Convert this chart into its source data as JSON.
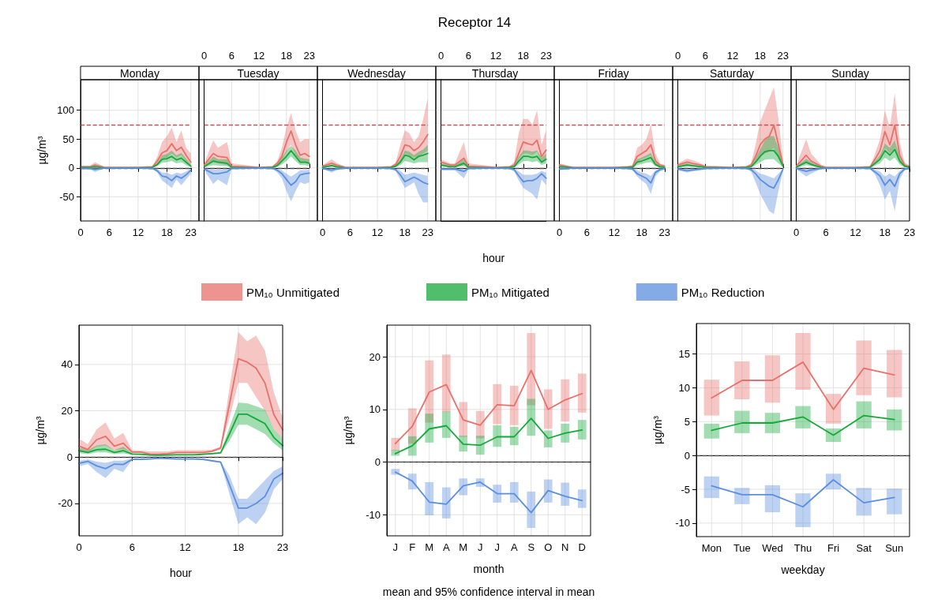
{
  "chart_data": [
    {
      "type": "line",
      "title": "Monday",
      "ylabel": "µg/m³",
      "marker": "none",
      "grid": true,
      "x": [
        0,
        2,
        3,
        5,
        6,
        12,
        15,
        16,
        17,
        18,
        19,
        20,
        21,
        22,
        23
      ],
      "xlim": [
        0,
        23
      ],
      "xticks": [
        0,
        6,
        12,
        18,
        23
      ],
      "ylim": [
        -92,
        153
      ],
      "yticks": [
        -50,
        0,
        50,
        100
      ],
      "ref_lines": [
        {
          "axis": "y",
          "value": 75,
          "color": "#c8505a",
          "line_style": "dashed"
        },
        {
          "axis": "y",
          "value": 0,
          "color": "#555555",
          "line_style": "dashed"
        }
      ],
      "series": [
        {
          "color": "#e8706b",
          "values": [
            2,
            2,
            5,
            1,
            1,
            1,
            2,
            12,
            26,
            30,
            42,
            30,
            36,
            22,
            10
          ],
          "upper": [
            4,
            4,
            10,
            2,
            2,
            2,
            3,
            20,
            45,
            55,
            70,
            45,
            65,
            35,
            25
          ],
          "lower": [
            1,
            1,
            2,
            0,
            0,
            0,
            1,
            6,
            15,
            18,
            25,
            18,
            22,
            12,
            5
          ]
        },
        {
          "color": "#17a83b",
          "values": [
            1,
            1,
            2,
            0,
            0,
            0,
            1,
            6,
            15,
            16,
            20,
            14,
            17,
            10,
            3
          ],
          "upper": [
            2,
            2,
            4,
            1,
            1,
            1,
            2,
            9,
            22,
            24,
            30,
            22,
            26,
            16,
            6
          ],
          "lower": [
            0,
            0,
            1,
            0,
            0,
            0,
            0,
            3,
            9,
            10,
            12,
            8,
            10,
            5,
            1
          ]
        },
        {
          "color": "#5b8fde",
          "values": [
            -1,
            -1,
            -3,
            0,
            0,
            0,
            -1,
            -5,
            -14,
            -16,
            -22,
            -14,
            -18,
            -12,
            -4
          ],
          "upper": [
            0,
            0,
            -1,
            0,
            0,
            0,
            0,
            -2,
            -8,
            -8,
            -12,
            -8,
            -10,
            -6,
            -1
          ],
          "lower": [
            -2,
            -2,
            -7,
            -1,
            -1,
            -1,
            -2,
            -8,
            -22,
            -28,
            -35,
            -20,
            -30,
            -20,
            -10
          ]
        }
      ]
    },
    {
      "type": "line",
      "title": "Tuesday",
      "marker": "none",
      "grid": true,
      "tick_labels": "x",
      "x": [
        0,
        2,
        3,
        5,
        6,
        12,
        15,
        16,
        17,
        18,
        19,
        20,
        21,
        22,
        23
      ],
      "xlim": [
        0,
        23
      ],
      "xticks": [
        0,
        6,
        12,
        18,
        23
      ],
      "ylim": [
        -92,
        153
      ],
      "yticks": [
        {
          "value": -50,
          "label": null
        },
        {
          "value": 0,
          "label": null
        },
        {
          "value": 50,
          "label": null
        },
        {
          "value": 100,
          "label": null
        }
      ],
      "ref_lines": [
        {
          "axis": "y",
          "value": 75,
          "color": "#c8505a",
          "line_style": "dashed"
        },
        {
          "axis": "y",
          "value": 0,
          "color": "#555555",
          "line_style": "dashed"
        }
      ],
      "series": [
        {
          "color": "#e8706b",
          "values": [
            5,
            25,
            20,
            18,
            3,
            1,
            2,
            8,
            20,
            45,
            64,
            40,
            22,
            25,
            20
          ],
          "upper": [
            8,
            48,
            35,
            45,
            8,
            2,
            3,
            12,
            35,
            70,
            95,
            65,
            45,
            50,
            50
          ],
          "lower": [
            2,
            10,
            8,
            5,
            1,
            0,
            1,
            4,
            12,
            28,
            40,
            22,
            12,
            12,
            8
          ]
        },
        {
          "color": "#17a83b",
          "values": [
            2,
            12,
            10,
            8,
            1,
            0,
            1,
            4,
            12,
            20,
            30,
            20,
            10,
            10,
            8
          ],
          "upper": [
            4,
            20,
            15,
            15,
            2,
            1,
            2,
            6,
            18,
            30,
            38,
            30,
            18,
            16,
            15
          ],
          "lower": [
            1,
            5,
            4,
            3,
            0,
            0,
            0,
            2,
            6,
            12,
            20,
            12,
            5,
            5,
            3
          ]
        },
        {
          "color": "#5b8fde",
          "values": [
            -2,
            -10,
            -10,
            -7,
            -1,
            0,
            -1,
            -4,
            -10,
            -20,
            -30,
            -24,
            -12,
            -10,
            -9
          ],
          "upper": [
            -1,
            -3,
            -3,
            -2,
            0,
            0,
            0,
            -2,
            -4,
            -10,
            -15,
            -10,
            -4,
            -4,
            -3
          ],
          "lower": [
            -4,
            -28,
            -20,
            -30,
            -2,
            -1,
            -2,
            -8,
            -18,
            -40,
            -58,
            -40,
            -25,
            -28,
            -25
          ]
        }
      ]
    },
    {
      "type": "line",
      "title": "Wednesday",
      "marker": "none",
      "grid": true,
      "tick_labels": "x",
      "x": [
        0,
        2,
        3,
        5,
        6,
        12,
        15,
        16,
        17,
        18,
        19,
        20,
        21,
        22,
        23
      ],
      "xlim": [
        0,
        23
      ],
      "xticks": [
        0,
        6,
        12,
        18,
        23
      ],
      "ylim": [
        -92,
        153
      ],
      "yticks": [
        {
          "value": -50,
          "label": null
        },
        {
          "value": 0,
          "label": null
        },
        {
          "value": 50,
          "label": null
        },
        {
          "value": 100,
          "label": null
        }
      ],
      "ref_lines": [
        {
          "axis": "y",
          "value": 75,
          "color": "#c8505a",
          "line_style": "dashed"
        },
        {
          "axis": "y",
          "value": 0,
          "color": "#555555",
          "line_style": "dashed"
        }
      ],
      "series": [
        {
          "color": "#e8706b",
          "values": [
            3,
            8,
            5,
            1,
            1,
            1,
            2,
            6,
            20,
            40,
            38,
            30,
            35,
            45,
            58
          ],
          "upper": [
            5,
            15,
            9,
            2,
            2,
            2,
            3,
            10,
            40,
            65,
            60,
            45,
            55,
            85,
            120
          ],
          "lower": [
            1,
            3,
            2,
            0,
            0,
            0,
            1,
            3,
            10,
            25,
            22,
            18,
            20,
            25,
            30
          ]
        },
        {
          "color": "#17a83b",
          "values": [
            1,
            4,
            2,
            0,
            0,
            0,
            1,
            3,
            10,
            22,
            20,
            14,
            20,
            22,
            25
          ],
          "upper": [
            2,
            6,
            4,
            1,
            1,
            1,
            2,
            5,
            15,
            30,
            28,
            22,
            28,
            32,
            40
          ],
          "lower": [
            0,
            2,
            1,
            0,
            0,
            0,
            0,
            1,
            5,
            12,
            10,
            8,
            10,
            10,
            10
          ]
        },
        {
          "color": "#5b8fde",
          "values": [
            -1,
            -4,
            -2,
            0,
            0,
            0,
            -1,
            -3,
            -12,
            -24,
            -20,
            -16,
            -20,
            -25,
            -28
          ],
          "upper": [
            0,
            -1,
            0,
            0,
            0,
            0,
            0,
            -1,
            -5,
            -12,
            -10,
            -8,
            -10,
            -12,
            -14
          ],
          "lower": [
            -2,
            -8,
            -4,
            -1,
            -1,
            -1,
            -2,
            -6,
            -20,
            -35,
            -30,
            -25,
            -45,
            -60,
            -60
          ]
        }
      ]
    },
    {
      "type": "line",
      "title": "Thursday",
      "xlabel": "hour",
      "marker": "none",
      "grid": true,
      "tick_labels": "x",
      "legend": "bottom",
      "annotations": [
        "Receptor 14"
      ],
      "x": [
        0,
        2,
        3,
        5,
        6,
        12,
        15,
        16,
        17,
        18,
        19,
        20,
        21,
        22,
        23
      ],
      "xlim": [
        0,
        23
      ],
      "xticks": [
        0,
        6,
        12,
        18,
        23
      ],
      "ylim": [
        -92,
        153
      ],
      "yticks": [
        {
          "value": -50,
          "label": null
        },
        {
          "value": 0,
          "label": null
        },
        {
          "value": 50,
          "label": null
        },
        {
          "value": 100,
          "label": null
        }
      ],
      "ref_lines": [
        {
          "axis": "y",
          "value": 75,
          "color": "#c8505a",
          "line_style": "dashed"
        },
        {
          "axis": "y",
          "value": 0,
          "color": "#555555",
          "line_style": "dashed"
        }
      ],
      "series": [
        {
          "name": "PM₁₀ Unmitigated",
          "color": "#e8706b",
          "values": [
            10,
            5,
            5,
            17,
            3,
            1,
            2,
            5,
            25,
            45,
            42,
            40,
            48,
            20,
            31
          ],
          "upper": [
            15,
            8,
            8,
            45,
            8,
            2,
            3,
            10,
            60,
            85,
            85,
            75,
            100,
            40,
            65
          ],
          "lower": [
            5,
            2,
            2,
            5,
            1,
            0,
            1,
            2,
            15,
            25,
            25,
            22,
            28,
            10,
            15
          ]
        },
        {
          "name": "PM₁₀ Mitigated",
          "color": "#17a83b",
          "values": [
            5,
            2,
            2,
            8,
            1,
            0,
            1,
            2,
            12,
            20,
            20,
            18,
            20,
            10,
            15
          ],
          "upper": [
            8,
            4,
            4,
            15,
            2,
            1,
            2,
            4,
            20,
            30,
            30,
            28,
            30,
            18,
            25
          ],
          "lower": [
            2,
            1,
            1,
            3,
            0,
            0,
            0,
            1,
            6,
            12,
            12,
            10,
            12,
            5,
            8
          ]
        },
        {
          "name": "PM₁₀ Reduction",
          "color": "#5b8fde",
          "values": [
            -2,
            -2,
            -2,
            -6,
            -1,
            0,
            -1,
            -3,
            -14,
            -24,
            -22,
            -22,
            -18,
            -10,
            -18
          ],
          "upper": [
            -1,
            -1,
            -1,
            -2,
            0,
            0,
            0,
            -1,
            -6,
            -12,
            -12,
            -12,
            -10,
            -5,
            -8
          ],
          "lower": [
            -4,
            -4,
            -4,
            -18,
            -2,
            -1,
            -2,
            -6,
            -22,
            -35,
            -40,
            -45,
            -55,
            -20,
            -30
          ]
        }
      ]
    },
    {
      "type": "line",
      "title": "Friday",
      "marker": "none",
      "grid": true,
      "tick_labels": "x",
      "x": [
        0,
        2,
        3,
        5,
        6,
        12,
        15,
        16,
        17,
        18,
        19,
        20,
        21,
        22,
        23
      ],
      "xlim": [
        0,
        23
      ],
      "xticks": [
        0,
        6,
        12,
        18,
        23
      ],
      "ylim": [
        -92,
        153
      ],
      "yticks": [
        {
          "value": -50,
          "label": null
        },
        {
          "value": 0,
          "label": null
        },
        {
          "value": 50,
          "label": null
        },
        {
          "value": 100,
          "label": null
        }
      ],
      "ref_lines": [
        {
          "axis": "y",
          "value": 75,
          "color": "#c8505a",
          "line_style": "dashed"
        },
        {
          "axis": "y",
          "value": 0,
          "color": "#555555",
          "line_style": "dashed"
        }
      ],
      "series": [
        {
          "color": "#e8706b",
          "values": [
            5,
            2,
            1,
            1,
            1,
            1,
            2,
            3,
            20,
            25,
            30,
            40,
            12,
            5,
            3
          ],
          "upper": [
            8,
            4,
            2,
            2,
            2,
            2,
            3,
            5,
            35,
            40,
            50,
            75,
            25,
            8,
            5
          ],
          "lower": [
            2,
            1,
            0,
            0,
            0,
            0,
            1,
            1,
            10,
            15,
            18,
            22,
            6,
            2,
            1
          ]
        },
        {
          "color": "#17a83b",
          "values": [
            2,
            1,
            0,
            0,
            0,
            0,
            1,
            1,
            10,
            12,
            15,
            18,
            6,
            2,
            1
          ],
          "upper": [
            4,
            2,
            1,
            1,
            1,
            1,
            2,
            2,
            15,
            18,
            22,
            26,
            10,
            4,
            2
          ],
          "lower": [
            1,
            0,
            0,
            0,
            0,
            0,
            0,
            0,
            5,
            7,
            9,
            10,
            3,
            1,
            0
          ]
        },
        {
          "color": "#5b8fde",
          "values": [
            -2,
            -1,
            0,
            0,
            0,
            0,
            -1,
            -2,
            -10,
            -14,
            -18,
            -26,
            -8,
            -3,
            -1
          ],
          "upper": [
            -1,
            0,
            0,
            0,
            0,
            0,
            0,
            -1,
            -4,
            -8,
            -10,
            -14,
            -4,
            -1,
            0
          ],
          "lower": [
            -4,
            -2,
            -1,
            -1,
            -1,
            -1,
            -2,
            -4,
            -15,
            -22,
            -28,
            -45,
            -15,
            -6,
            -3
          ]
        }
      ]
    },
    {
      "type": "line",
      "title": "Saturday",
      "marker": "none",
      "grid": true,
      "tick_labels": "x",
      "x": [
        0,
        2,
        3,
        5,
        6,
        12,
        15,
        16,
        17,
        18,
        19,
        20,
        21,
        22,
        23
      ],
      "xlim": [
        0,
        23
      ],
      "xticks": [
        0,
        6,
        12,
        18,
        23
      ],
      "ylim": [
        -92,
        153
      ],
      "yticks": [
        {
          "value": -50,
          "label": null
        },
        {
          "value": 0,
          "label": null
        },
        {
          "value": 50,
          "label": null
        },
        {
          "value": 100,
          "label": null
        }
      ],
      "ref_lines": [
        {
          "axis": "y",
          "value": 75,
          "color": "#c8505a",
          "line_style": "dashed"
        },
        {
          "axis": "y",
          "value": 0,
          "color": "#555555",
          "line_style": "dashed"
        }
      ],
      "series": [
        {
          "color": "#e8706b",
          "values": [
            5,
            10,
            8,
            5,
            2,
            1,
            2,
            5,
            20,
            40,
            50,
            55,
            74,
            40,
            5
          ],
          "upper": [
            8,
            16,
            14,
            8,
            4,
            2,
            3,
            8,
            40,
            80,
            100,
            120,
            140,
            85,
            15
          ],
          "lower": [
            2,
            5,
            3,
            2,
            1,
            0,
            1,
            2,
            10,
            20,
            25,
            28,
            35,
            15,
            2
          ]
        },
        {
          "color": "#17a83b",
          "values": [
            2,
            5,
            4,
            2,
            1,
            0,
            1,
            2,
            10,
            20,
            28,
            30,
            30,
            20,
            3
          ],
          "upper": [
            4,
            8,
            6,
            4,
            2,
            1,
            2,
            4,
            18,
            32,
            48,
            55,
            55,
            35,
            6
          ],
          "lower": [
            1,
            2,
            2,
            1,
            0,
            0,
            0,
            1,
            5,
            10,
            14,
            15,
            15,
            8,
            1
          ]
        },
        {
          "color": "#5b8fde",
          "values": [
            -2,
            -5,
            -4,
            -2,
            -1,
            0,
            -1,
            -3,
            -10,
            -20,
            -26,
            -32,
            -35,
            -20,
            -2
          ],
          "upper": [
            -1,
            -2,
            -1,
            -1,
            0,
            0,
            0,
            -1,
            -4,
            -10,
            -12,
            -15,
            -18,
            -10,
            -1
          ],
          "lower": [
            -4,
            -8,
            -6,
            -4,
            -2,
            -1,
            -2,
            -6,
            -25,
            -45,
            -60,
            -75,
            -80,
            -40,
            -5
          ]
        }
      ]
    },
    {
      "type": "line",
      "title": "Sunday",
      "marker": "none",
      "grid": true,
      "tick_labels": "x",
      "x": [
        0,
        2,
        3,
        5,
        6,
        12,
        15,
        16,
        17,
        18,
        19,
        20,
        21,
        22,
        23
      ],
      "xlim": [
        0,
        23
      ],
      "xticks": [
        0,
        6,
        12,
        18,
        23
      ],
      "ylim": [
        -92,
        153
      ],
      "yticks": [
        {
          "value": -50,
          "label": null
        },
        {
          "value": 0,
          "label": null
        },
        {
          "value": 50,
          "label": null
        },
        {
          "value": 100,
          "label": null
        }
      ],
      "ref_lines": [
        {
          "axis": "y",
          "value": 75,
          "color": "#c8505a",
          "line_style": "dashed"
        },
        {
          "axis": "y",
          "value": 0,
          "color": "#555555",
          "line_style": "dashed"
        }
      ],
      "series": [
        {
          "color": "#e8706b",
          "values": [
            3,
            22,
            12,
            3,
            1,
            1,
            2,
            15,
            30,
            63,
            40,
            74,
            22,
            5,
            2
          ],
          "upper": [
            5,
            50,
            25,
            6,
            2,
            2,
            3,
            25,
            50,
            100,
            70,
            130,
            45,
            10,
            4
          ],
          "lower": [
            1,
            8,
            5,
            1,
            0,
            0,
            1,
            8,
            15,
            35,
            25,
            35,
            10,
            2,
            1
          ]
        },
        {
          "color": "#17a83b",
          "values": [
            1,
            10,
            6,
            1,
            0,
            0,
            1,
            8,
            15,
            30,
            22,
            32,
            12,
            3,
            1
          ],
          "upper": [
            2,
            16,
            10,
            2,
            1,
            1,
            2,
            12,
            22,
            42,
            35,
            48,
            20,
            5,
            2
          ],
          "lower": [
            0,
            5,
            3,
            0,
            0,
            0,
            0,
            4,
            8,
            18,
            12,
            18,
            6,
            1,
            0
          ]
        },
        {
          "color": "#5b8fde",
          "values": [
            -1,
            -6,
            -4,
            -1,
            0,
            0,
            -1,
            -7,
            -14,
            -30,
            -20,
            -32,
            -10,
            -2,
            -1
          ],
          "upper": [
            0,
            -2,
            -1,
            0,
            0,
            0,
            0,
            -3,
            -6,
            -15,
            -10,
            -15,
            -5,
            -1,
            0
          ],
          "lower": [
            -2,
            -15,
            -10,
            -2,
            -1,
            -1,
            -2,
            -12,
            -30,
            -55,
            -40,
            -75,
            -20,
            -4,
            -2
          ]
        }
      ]
    },
    {
      "type": "line",
      "xlabel": "hour",
      "ylabel": "µg/m³",
      "marker": "none",
      "grid": true,
      "x": [
        0,
        1,
        2,
        3,
        4,
        5,
        6,
        7,
        8,
        9,
        10,
        11,
        12,
        13,
        14,
        15,
        16,
        17,
        18,
        19,
        20,
        21,
        22,
        23
      ],
      "xlim": [
        0,
        23
      ],
      "xticks": [
        0,
        6,
        12,
        18,
        23
      ],
      "ylim": [
        -34,
        57
      ],
      "yticks": [
        -20,
        0,
        20,
        40
      ],
      "ref_lines": [
        {
          "axis": "y",
          "value": 0,
          "color": "#555555",
          "line_style": "dashed"
        }
      ],
      "series": [
        {
          "color": "#e8706b",
          "values": [
            4.7,
            3.3,
            7.5,
            9,
            4.7,
            6,
            2.2,
            2.2,
            1.3,
            1.2,
            1.5,
            2,
            2,
            2,
            2,
            2.5,
            3.9,
            23,
            42.5,
            41,
            38.4,
            32,
            18.4,
            11.8
          ],
          "upper": [
            8,
            5.5,
            12,
            15,
            8,
            10.5,
            3,
            2.8,
            2.5,
            2.5,
            2.5,
            3,
            3,
            3,
            3,
            3.2,
            4.5,
            30,
            54,
            50,
            52.5,
            46,
            28,
            17
          ],
          "lower": [
            3,
            2,
            4.5,
            5,
            3,
            3.5,
            1.8,
            1.8,
            1,
            0.9,
            1,
            1.5,
            1.5,
            1.5,
            1.5,
            2,
            3.5,
            17,
            32,
            32,
            26,
            20,
            12,
            8
          ]
        },
        {
          "color": "#17a83b",
          "values": [
            2.8,
            2,
            3.2,
            3.4,
            2,
            2.8,
            1.3,
            1.2,
            0.9,
            0.8,
            0.9,
            1,
            1,
            1,
            1.2,
            1.5,
            1.8,
            10,
            18.5,
            18.5,
            16.5,
            14.5,
            8.5,
            5
          ],
          "upper": [
            4,
            3,
            5,
            5.5,
            3,
            4.5,
            1.6,
            1.5,
            1.2,
            1.1,
            1.2,
            1.3,
            1.3,
            1.3,
            1.5,
            1.8,
            2.1,
            13,
            23.5,
            23.3,
            22,
            20.5,
            12,
            8
          ],
          "lower": [
            1.8,
            1.3,
            2,
            2,
            1.3,
            1.6,
            1,
            0.9,
            0.7,
            0.6,
            0.7,
            0.8,
            0.8,
            0.8,
            1,
            1.2,
            1.6,
            7,
            14,
            14,
            12,
            10,
            6,
            3
          ]
        },
        {
          "color": "#5b8fde",
          "values": [
            -2.7,
            -1.8,
            -3.8,
            -5,
            -3,
            -3.2,
            -1,
            -1,
            -0.8,
            -0.5,
            -0.6,
            -0.8,
            -0.8,
            -0.8,
            -1,
            -1.6,
            -2.2,
            -12,
            -22,
            -22,
            -20,
            -17,
            -9.5,
            -7
          ],
          "upper": [
            -1.5,
            -1,
            -2,
            -2.5,
            -1.5,
            -1.5,
            -0.6,
            -0.6,
            -0.5,
            -0.3,
            -0.4,
            -0.5,
            -0.5,
            -0.5,
            -0.7,
            -1.2,
            -1.8,
            -8,
            -18,
            -18,
            -14,
            -10,
            -6,
            -4
          ],
          "lower": [
            -4,
            -3,
            -6.5,
            -9,
            -5,
            -6.5,
            -1.2,
            -1.2,
            -1,
            -0.7,
            -0.8,
            -1,
            -1,
            -1,
            -1.3,
            -2,
            -2.5,
            -16,
            -29,
            -26,
            -29,
            -24,
            -14,
            -9.5
          ]
        }
      ]
    },
    {
      "type": "line",
      "xlabel": "month",
      "ylabel": "µg/m³",
      "marker": "none",
      "grid": true,
      "categories": [
        "J",
        "F",
        "M",
        "A",
        "M",
        "J",
        "J",
        "A",
        "S",
        "O",
        "N",
        "D"
      ],
      "ylim": [
        -14,
        26
      ],
      "yticks": [
        -10,
        0,
        10,
        20
      ],
      "annotations": [
        "mean and 95% confidence interval in mean"
      ],
      "ref_lines": [
        {
          "axis": "y",
          "value": 0,
          "color": "#555555",
          "line_style": "dashed"
        }
      ],
      "series": [
        {
          "color": "#e8706b",
          "values": [
            3.5,
            6.8,
            13.3,
            14.7,
            8,
            7,
            10.9,
            10.7,
            17.4,
            10,
            11.8,
            13
          ],
          "errors": [
            [
              2.2,
              4.6
            ],
            [
              3.5,
              10.2
            ],
            [
              7.5,
              19.3
            ],
            [
              9.5,
              20.4
            ],
            [
              4.8,
              11.4
            ],
            [
              4.5,
              9.7
            ],
            [
              7.2,
              14.8
            ],
            [
              7,
              14.5
            ],
            [
              10.8,
              24.5
            ],
            [
              6.3,
              13.8
            ],
            [
              7.7,
              15.7
            ],
            [
              9.4,
              16.8
            ]
          ]
        },
        {
          "color": "#17a83b",
          "values": [
            1.6,
            3.1,
            6.3,
            6.9,
            3.4,
            3.2,
            4.8,
            4.8,
            8.3,
            4.5,
            5.5,
            6.1
          ],
          "errors": [
            [
              1.2,
              2.3
            ],
            [
              1.2,
              4.9
            ],
            [
              3.7,
              9.2
            ],
            [
              4.6,
              9.6
            ],
            [
              2,
              5
            ],
            [
              1.4,
              5
            ],
            [
              2.9,
              7
            ],
            [
              3.2,
              6.7
            ],
            [
              5,
              12
            ],
            [
              2.8,
              6
            ],
            [
              3.7,
              7.3
            ],
            [
              4.3,
              8
            ]
          ]
        },
        {
          "color": "#5b8fde",
          "values": [
            -1.9,
            -3.6,
            -7.6,
            -8,
            -4.5,
            -3.8,
            -6,
            -6,
            -9.6,
            -5.4,
            -6.5,
            -7.3
          ],
          "errors": [
            [
              -2.4,
              -1.3
            ],
            [
              -5.2,
              -2.2
            ],
            [
              -10.1,
              -3.8
            ],
            [
              -10.7,
              -4.8
            ],
            [
              -6.3,
              -3.1
            ],
            [
              -4.7,
              -3.1
            ],
            [
              -7.7,
              -4.3
            ],
            [
              -7.7,
              -3.8
            ],
            [
              -12.5,
              -5.6
            ],
            [
              -7.7,
              -3.3
            ],
            [
              -8.3,
              -3.9
            ],
            [
              -8.7,
              -5.2
            ]
          ]
        }
      ]
    },
    {
      "type": "line",
      "xlabel": "weekday",
      "ylabel": "µg/m³",
      "marker": "none",
      "grid": true,
      "categories": [
        "Mon",
        "Tue",
        "Wed",
        "Thu",
        "Fri",
        "Sat",
        "Sun"
      ],
      "ylim": [
        -12,
        19.5
      ],
      "yticks": [
        -10,
        -5,
        0,
        5,
        10,
        15
      ],
      "ref_lines": [
        {
          "axis": "y",
          "value": 0,
          "color": "#555555",
          "line_style": "dashed"
        }
      ],
      "series": [
        {
          "color": "#e8706b",
          "values": [
            8.5,
            11.1,
            11.1,
            13.8,
            6.8,
            12.9,
            11.9
          ],
          "errors": [
            [
              5.9,
              11.2
            ],
            [
              8.3,
              13.9
            ],
            [
              7.8,
              14.8
            ],
            [
              9.7,
              18.1
            ],
            [
              4.7,
              9.1
            ],
            [
              8.9,
              17
            ],
            [
              8.6,
              15.6
            ]
          ]
        },
        {
          "color": "#17a83b",
          "values": [
            3.7,
            4.8,
            4.8,
            5.7,
            3,
            5.9,
            5.3
          ],
          "errors": [
            [
              2.5,
              4.7
            ],
            [
              3.3,
              6.6
            ],
            [
              3.3,
              6.3
            ],
            [
              4,
              7.3
            ],
            [
              2,
              4
            ],
            [
              4,
              8
            ],
            [
              3.7,
              6.8
            ]
          ]
        },
        {
          "color": "#5b8fde",
          "values": [
            -4.5,
            -5.8,
            -5.8,
            -7.6,
            -3.6,
            -7,
            -6.2
          ],
          "errors": [
            [
              -6.3,
              -3.1
            ],
            [
              -7.2,
              -4.8
            ],
            [
              -8.4,
              -4.4
            ],
            [
              -10.6,
              -5.6
            ],
            [
              -5,
              -2.7
            ],
            [
              -8.9,
              -4.8
            ],
            [
              -8.7,
              -4.9
            ]
          ]
        }
      ]
    }
  ]
}
